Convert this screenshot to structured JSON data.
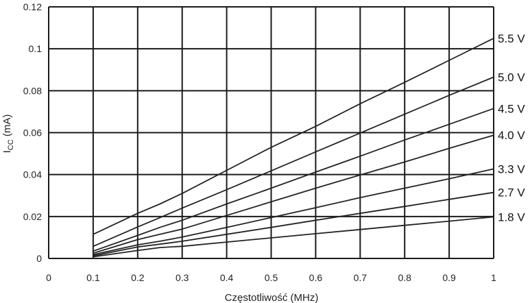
{
  "chart_data": {
    "type": "line",
    "title": "",
    "xlabel": "Częstotliwość (MHz)",
    "ylabel_main": "I",
    "ylabel_sub": "CC",
    "ylabel_unit": "(mA)",
    "xlim": [
      0,
      1
    ],
    "ylim": [
      0,
      0.12
    ],
    "x_ticks": [
      "0",
      "0.1",
      "0.2",
      "0.3",
      "0.4",
      "0.5",
      "0.6",
      "0.7",
      "0.8",
      "0.9",
      "1"
    ],
    "y_ticks": [
      "0",
      "0.02",
      "0.04",
      "0.06",
      "0.08",
      "0.1",
      "0.12"
    ],
    "grid": true,
    "legend": "series labels at right end of lines",
    "series": [
      {
        "name": "5.5 V",
        "x": [
          0.1,
          0.2,
          0.25,
          0.3,
          0.4,
          0.5,
          0.6,
          0.7,
          0.8,
          0.9,
          1.0
        ],
        "y": [
          0.0115,
          0.0215,
          0.026,
          0.031,
          0.042,
          0.053,
          0.063,
          0.0738,
          0.084,
          0.0945,
          0.105
        ]
      },
      {
        "name": "5.0 V",
        "x": [
          0.1,
          0.2,
          0.25,
          0.3,
          0.4,
          0.5,
          0.6,
          0.7,
          0.8,
          0.9,
          1.0
        ],
        "y": [
          0.0058,
          0.015,
          0.0195,
          0.024,
          0.0328,
          0.0418,
          0.0508,
          0.0598,
          0.0688,
          0.0778,
          0.0865
        ]
      },
      {
        "name": "4.5 V",
        "x": [
          0.1,
          0.2,
          0.25,
          0.3,
          0.4,
          0.5,
          0.6,
          0.7,
          0.8,
          0.9,
          1.0
        ],
        "y": [
          0.0035,
          0.011,
          0.0148,
          0.0182,
          0.026,
          0.0335,
          0.0412,
          0.0488,
          0.0565,
          0.064,
          0.0715
        ]
      },
      {
        "name": "4.0 V",
        "x": [
          0.1,
          0.2,
          0.25,
          0.3,
          0.4,
          0.5,
          0.6,
          0.7,
          0.8,
          0.9,
          1.0
        ],
        "y": [
          0.0025,
          0.009,
          0.0115,
          0.014,
          0.0205,
          0.027,
          0.0335,
          0.0398,
          0.046,
          0.0525,
          0.0588
        ]
      },
      {
        "name": "3.3 V",
        "x": [
          0.1,
          0.2,
          0.25,
          0.3,
          0.4,
          0.5,
          0.6,
          0.7,
          0.8,
          0.9,
          1.0
        ],
        "y": [
          0.0018,
          0.0065,
          0.0082,
          0.0102,
          0.0148,
          0.0195,
          0.0242,
          0.029,
          0.0335,
          0.038,
          0.0427
        ]
      },
      {
        "name": "2.7 V",
        "x": [
          0.1,
          0.2,
          0.25,
          0.3,
          0.4,
          0.5,
          0.6,
          0.7,
          0.8,
          0.9,
          1.0
        ],
        "y": [
          0.0012,
          0.0055,
          0.0068,
          0.0082,
          0.0115,
          0.0148,
          0.0182,
          0.0215,
          0.0248,
          0.0282,
          0.0315
        ]
      },
      {
        "name": "1.8 V",
        "x": [
          0.1,
          0.2,
          0.25,
          0.3,
          0.4,
          0.5,
          0.6,
          0.7,
          0.8,
          0.9,
          1.0
        ],
        "y": [
          0.0008,
          0.0038,
          0.0052,
          0.0058,
          0.0078,
          0.0098,
          0.0118,
          0.0138,
          0.0158,
          0.0178,
          0.0198
        ]
      }
    ]
  },
  "colors": {
    "line": "#222222",
    "grid": "#1a1a1a",
    "background": "#ffffff"
  }
}
